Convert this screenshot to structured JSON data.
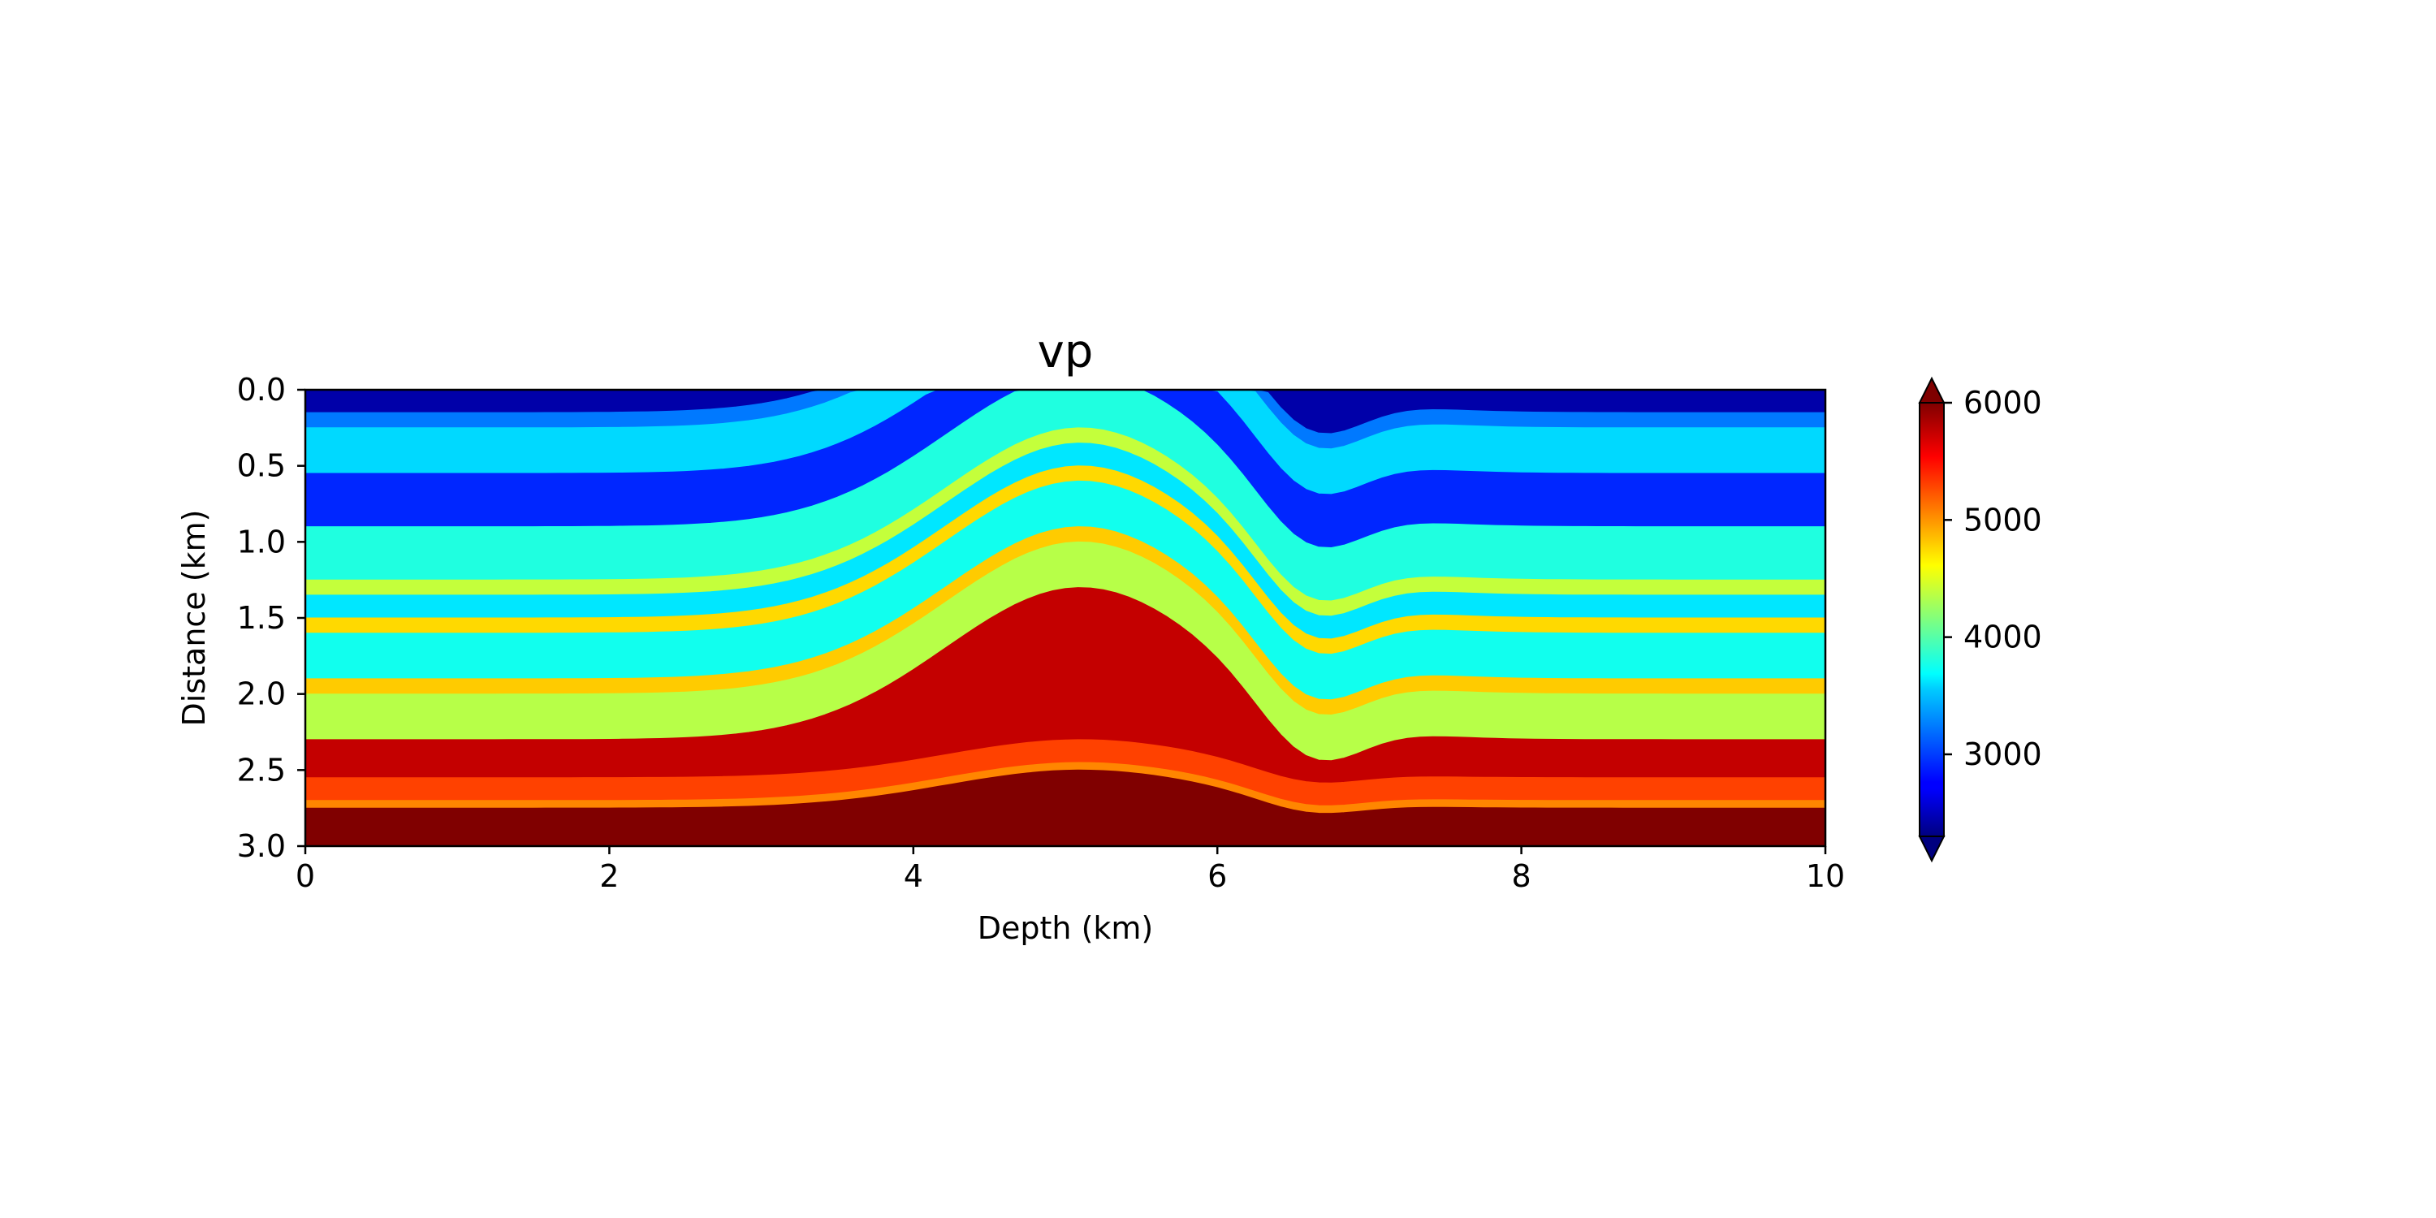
{
  "chart_data": {
    "type": "heatmap",
    "title": "vp",
    "xlabel": "Depth (km)",
    "ylabel": "Distance (km)",
    "xlim": [
      0,
      10
    ],
    "ylim": [
      3.0,
      0.0
    ],
    "y_inverted": true,
    "xticks": [
      0,
      2,
      4,
      6,
      8,
      10
    ],
    "xtick_labels": [
      "0",
      "2",
      "4",
      "6",
      "8",
      "10"
    ],
    "yticks": [
      0.0,
      0.5,
      1.0,
      1.5,
      2.0,
      2.5,
      3.0
    ],
    "ytick_labels": [
      "0.0",
      "0.5",
      "1.0",
      "1.5",
      "2.0",
      "2.5",
      "3.0"
    ],
    "colormap": "jet",
    "colorbar": {
      "vmin": 2300,
      "vmax": 6000,
      "extend": "both",
      "ticks": [
        3000,
        4000,
        5000,
        6000
      ],
      "tick_labels": [
        "3000",
        "4000",
        "5000",
        "6000"
      ],
      "under_color": "#00007f",
      "over_color": "#7f0000"
    },
    "grid": false,
    "model": {
      "description": "Layered velocity model with anticline and faults",
      "layers": [
        {
          "top_depth": 0.0,
          "vp": 2450
        },
        {
          "top_depth": 0.15,
          "vp": 3200
        },
        {
          "top_depth": 0.25,
          "vp": 3550
        },
        {
          "top_depth": 0.55,
          "vp": 2900
        },
        {
          "top_depth": 0.9,
          "vp": 3800
        },
        {
          "top_depth": 1.25,
          "vp": 4400
        },
        {
          "top_depth": 1.35,
          "vp": 3600
        },
        {
          "top_depth": 1.5,
          "vp": 4750
        },
        {
          "top_depth": 1.6,
          "vp": 3750
        },
        {
          "top_depth": 1.9,
          "vp": 4800
        },
        {
          "top_depth": 2.0,
          "vp": 4350
        },
        {
          "top_depth": 2.3,
          "vp": 5750
        },
        {
          "top_depth": 2.55,
          "vp": 5300
        },
        {
          "top_depth": 2.7,
          "vp": 5050
        },
        {
          "top_depth": 2.75,
          "vp": 6100
        }
      ]
    }
  }
}
